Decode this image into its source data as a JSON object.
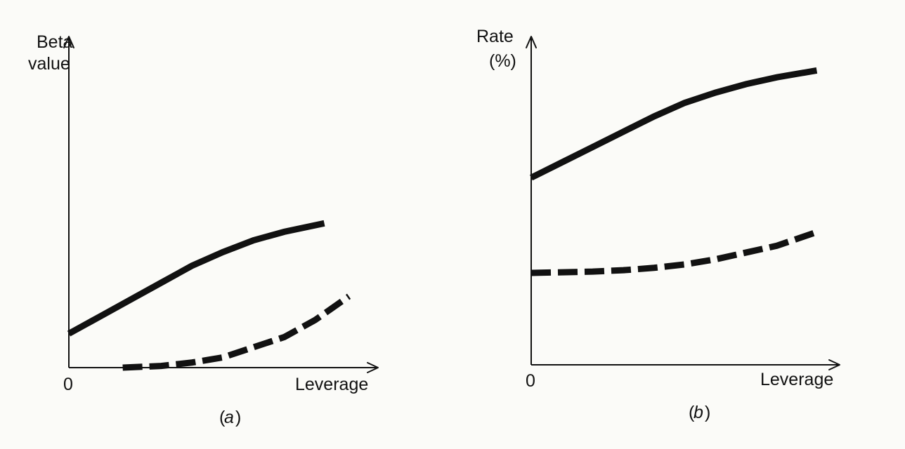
{
  "chart_data": [
    {
      "type": "line",
      "panel_label": "(a)",
      "panel_letter": "a",
      "ylabel": "Beta\nvalue",
      "xlabel": "Leverage",
      "x_origin_label": "0",
      "xlim": [
        0,
        10
      ],
      "ylim": [
        0,
        10
      ],
      "series": [
        {
          "style": "solid",
          "x": [
            0,
            1,
            2,
            3,
            4,
            5,
            6,
            7,
            8.3
          ],
          "y": [
            1.0,
            1.5,
            2.0,
            2.5,
            3.0,
            3.4,
            3.75,
            4.0,
            4.25
          ]
        },
        {
          "style": "dashed",
          "x": [
            1.75,
            3,
            4,
            5,
            6,
            7,
            8,
            9.1
          ],
          "y": [
            0.0,
            0.05,
            0.15,
            0.3,
            0.6,
            0.9,
            1.4,
            2.1
          ]
        }
      ]
    },
    {
      "type": "line",
      "panel_label": "(b)",
      "panel_letter": "b",
      "ylabel": "Rate\n(%)",
      "xlabel": "Leverage",
      "x_origin_label": "0",
      "xlim": [
        0,
        10
      ],
      "ylim": [
        0,
        10
      ],
      "series": [
        {
          "style": "solid",
          "x": [
            0,
            1,
            2,
            3,
            4,
            5,
            6,
            7,
            8,
            9.3
          ],
          "y": [
            5.5,
            5.95,
            6.4,
            6.85,
            7.3,
            7.7,
            8.0,
            8.25,
            8.45,
            8.65
          ]
        },
        {
          "style": "dashed",
          "x": [
            0,
            1,
            2,
            3,
            4,
            5,
            6,
            7,
            8,
            9.3
          ],
          "y": [
            2.7,
            2.72,
            2.74,
            2.78,
            2.85,
            2.95,
            3.1,
            3.3,
            3.5,
            3.9
          ]
        }
      ]
    }
  ]
}
